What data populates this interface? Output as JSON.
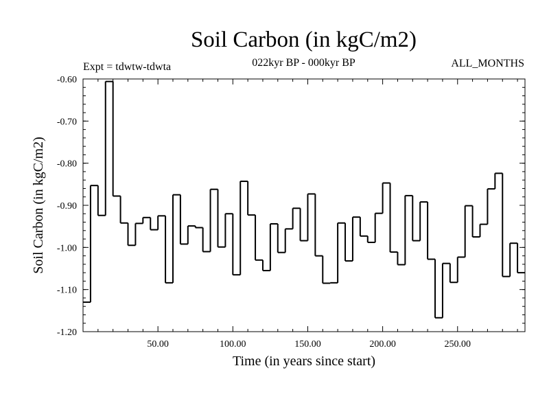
{
  "chart_data": {
    "type": "line",
    "style": "step",
    "title": "Soil Carbon (in kgC/m2)",
    "subtitle": "022kyr BP - 000kyr BP",
    "left_annotation": "Expt = tdwtw-tdwta",
    "right_annotation": "ALL_MONTHS",
    "xlabel": "Time (in years since start)",
    "ylabel": "Soil Carbon (in kgC/m2)",
    "xlim": [
      0,
      295
    ],
    "ylim": [
      -1.2,
      -0.6
    ],
    "x_ticks": [
      50,
      100,
      150,
      200,
      250
    ],
    "x_tick_labels": [
      "50.00",
      "100.00",
      "150.00",
      "200.00",
      "250.00"
    ],
    "y_ticks": [
      -0.6,
      -0.7,
      -0.8,
      -0.9,
      -1.0,
      -1.1,
      -1.2
    ],
    "y_tick_labels": [
      "-0.60",
      "-0.70",
      "-0.80",
      "-0.90",
      "-1.00",
      "-1.10",
      "-1.20"
    ],
    "x_step": 5,
    "values": [
      -1.13,
      -0.853,
      -0.924,
      -0.606,
      -0.878,
      -0.942,
      -0.995,
      -0.943,
      -0.929,
      -0.958,
      -0.925,
      -1.084,
      -0.875,
      -0.992,
      -0.949,
      -0.953,
      -1.01,
      -0.862,
      -0.999,
      -0.92,
      -1.065,
      -0.843,
      -0.923,
      -1.03,
      -1.055,
      -0.944,
      -1.012,
      -0.956,
      -0.907,
      -0.984,
      -0.873,
      -1.02,
      -1.085,
      -1.084,
      -0.942,
      -1.032,
      -0.928,
      -0.973,
      -0.988,
      -0.919,
      -0.847,
      -1.011,
      -1.041,
      -0.877,
      -0.984,
      -0.892,
      -1.028,
      -1.167,
      -1.038,
      -1.083,
      -1.023,
      -0.901,
      -0.975,
      -0.945,
      -0.861,
      -0.824,
      -1.069,
      -0.99,
      -1.06
    ]
  }
}
